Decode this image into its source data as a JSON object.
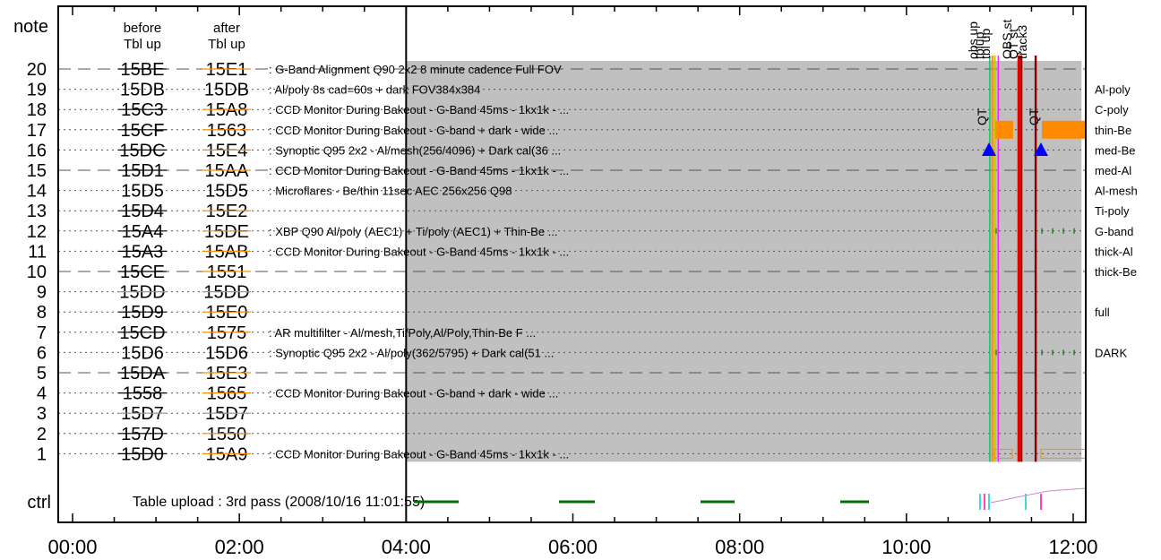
{
  "chart_data": {
    "type": "timeline",
    "header": {
      "note": "note",
      "ctrl": "ctrl",
      "before": [
        "before",
        "Tbl up"
      ],
      "after": [
        "after",
        "Tbl up"
      ]
    },
    "x_ticks": [
      "00:00",
      "02:00",
      "04:00",
      "06:00",
      "08:00",
      "10:00",
      "12:00"
    ],
    "x_range_hours": [
      0,
      12.2
    ],
    "current_time_hours": 4.0,
    "shaded_span_hours": [
      4.0,
      12.1
    ],
    "table_upload_text": "Table upload : 3rd pass (2008/10/16 11:01:55)",
    "rows": [
      {
        "note": "20",
        "before": "15BE",
        "before_style": "strike",
        "after": "15E1",
        "after_style": "orange-strike",
        "desc": ": G-Band Alignment Q90 2x2 8 minute cadence Full FOV",
        "line": "dash",
        "right": ""
      },
      {
        "note": "19",
        "before": "15DB",
        "before_style": "gray",
        "after": "15DB",
        "after_style": "plain",
        "desc": ": Al/poly 8s cad=60s + dark FOV384x384",
        "line": "dot",
        "right": "Al-poly"
      },
      {
        "note": "18",
        "before": "15C3",
        "before_style": "strike",
        "after": "15A8",
        "after_style": "orange-strike",
        "desc": ": CCD Monitor During Bakeout - G-Band 45ms - 1kx1k - ...",
        "line": "dot",
        "right": "C-poly"
      },
      {
        "note": "17",
        "before": "15CF",
        "before_style": "strike",
        "after": "1563",
        "after_style": "orange-strike",
        "desc": ": CCD Monitor During Bakeout - G-band + dark - wide  ...",
        "line": "dot",
        "right": "thin-Be"
      },
      {
        "note": "16",
        "before": "15DC",
        "before_style": "strike",
        "after": "15E4",
        "after_style": "orange-strike",
        "desc": ": Synoptic Q95 2x2 - Al/mesh(256/4096) + Dark cal(36 ...",
        "line": "dot",
        "right": "med-Be"
      },
      {
        "note": "15",
        "before": "15D1",
        "before_style": "strike",
        "after": "15AA",
        "after_style": "orange-strike",
        "desc": ": CCD Monitor During Bakeout - G-Band 45ms - 1kx1k - ...",
        "line": "dash",
        "right": "med-Al"
      },
      {
        "note": "14",
        "before": "15D5",
        "before_style": "gray",
        "after": "15D5",
        "after_style": "plain",
        "desc": ": Microflares - Be/thin 11sec AEC 256x256 Q98",
        "line": "dot",
        "right": "Al-mesh"
      },
      {
        "note": "13",
        "before": "15D4",
        "before_style": "strike",
        "after": "15E2",
        "after_style": "orange-strike",
        "desc": "",
        "line": "dot",
        "right": "Ti-poly"
      },
      {
        "note": "12",
        "before": "15A4",
        "before_style": "strike",
        "after": "15DE",
        "after_style": "orange-strike",
        "desc": ": XBP Q90 Al/poly (AEC1) + Ti/poly (AEC1) + Thin-Be  ...",
        "line": "dot",
        "right": "G-band"
      },
      {
        "note": "11",
        "before": "15A3",
        "before_style": "strike",
        "after": "15AB",
        "after_style": "orange-strike",
        "desc": ": CCD Monitor During Bakeout - G-Band 45ms - 1kx1k - ...",
        "line": "dot",
        "right": "thick-Al"
      },
      {
        "note": "10",
        "before": "15CE",
        "before_style": "strike",
        "after": "1551",
        "after_style": "orange-strike",
        "desc": "",
        "line": "dash",
        "right": "thick-Be"
      },
      {
        "note": "9",
        "before": "15DD",
        "before_style": "gray-strike",
        "after": "15DD",
        "after_style": "gray-strike",
        "desc": "",
        "line": "dot",
        "right": ""
      },
      {
        "note": "8",
        "before": "15D9",
        "before_style": "strike",
        "after": "15E0",
        "after_style": "orange-strike",
        "desc": "",
        "line": "dot",
        "right": "full"
      },
      {
        "note": "7",
        "before": "15CD",
        "before_style": "strike",
        "after": "1575",
        "after_style": "orange-strike",
        "desc": ": AR multifilter - Al/mesh,Ti/Poly,Al/Poly,Thin-Be F ...",
        "line": "dot",
        "right": ""
      },
      {
        "note": "6",
        "before": "15D6",
        "before_style": "gray",
        "after": "15D6",
        "after_style": "plain",
        "desc": ": Synoptic Q95 2x2 - Al/poly(362/5795) + Dark cal(51 ...",
        "line": "dot",
        "right": "DARK"
      },
      {
        "note": "5",
        "before": "15DA",
        "before_style": "strike",
        "after": "15E3",
        "after_style": "orange-strike",
        "desc": "",
        "line": "dash",
        "right": ""
      },
      {
        "note": "4",
        "before": "1558",
        "before_style": "strike",
        "after": "1565",
        "after_style": "orange-strike",
        "desc": ": CCD Monitor During Bakeout - G-band + dark - wide  ...",
        "line": "dot",
        "right": ""
      },
      {
        "note": "3",
        "before": "15D7",
        "before_style": "gray-strike",
        "after": "15D7",
        "after_style": "gray-strike",
        "desc": "",
        "line": "dot",
        "right": ""
      },
      {
        "note": "2",
        "before": "157D",
        "before_style": "strike",
        "after": "1550",
        "after_style": "orange-strike",
        "desc": "",
        "line": "dot",
        "right": ""
      },
      {
        "note": "1",
        "before": "15D0",
        "before_style": "strike",
        "after": "15A9",
        "after_style": "orange-strike",
        "desc": ": CCD Monitor During Bakeout - G-Band 45ms - 1kx1k - ...",
        "line": "dot",
        "right": ""
      }
    ],
    "event_labels": [
      {
        "text": "obs up",
        "color": "#ff8c00",
        "t": 11.02
      },
      {
        "text": "tblup",
        "color": "#c8c800",
        "t": 11.05
      },
      {
        "text": "tbl up",
        "color": "#ff00ff",
        "t": 11.08
      },
      {
        "text": "OBS st",
        "color": "#ff2020",
        "t": 11.35
      },
      {
        "text": "QT st",
        "color": "#ff00ff",
        "t": 11.4
      },
      {
        "text": "track3",
        "color": "#8b0000",
        "t": 11.55
      }
    ],
    "qt_markers": [
      {
        "text": "QT",
        "color": "#0000ff",
        "t": 11.08
      },
      {
        "text": "QT",
        "color": "#0000ff",
        "t": 11.7
      }
    ],
    "colors": {
      "orange": "#ff8c00",
      "gray_text": "#999999",
      "shade": "#c0c0c0",
      "green": "#007000",
      "cyan": "#00cccc",
      "magenta": "#ff00aa",
      "blue": "#0000ff",
      "dark_red": "#8b0000",
      "red": "#e00000"
    }
  }
}
